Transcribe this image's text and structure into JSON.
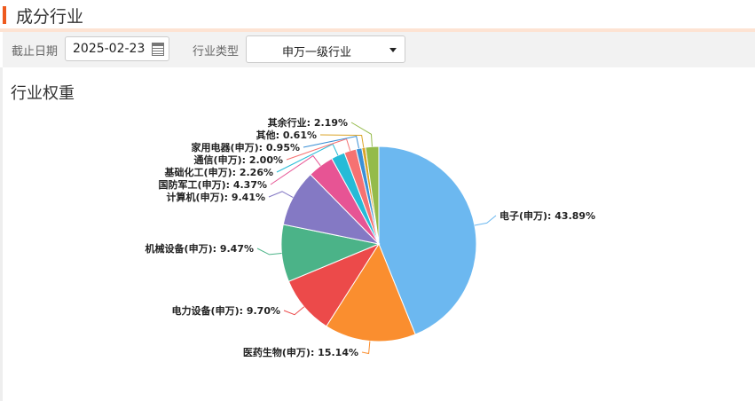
{
  "header": {
    "title": "成分行业"
  },
  "filters": {
    "date_label": "截止日期",
    "date_value": "2025-02-23",
    "industry_label": "行业类型",
    "industry_value": "申万一级行业"
  },
  "section": {
    "title": "行业权重"
  },
  "chart_data": {
    "type": "pie",
    "slices": [
      {
        "label": "电子(申万)",
        "value": 43.89,
        "color": "#6cb8f0"
      },
      {
        "label": "医药生物(申万)",
        "value": 15.14,
        "color": "#fa8e2f"
      },
      {
        "label": "电力设备(申万)",
        "value": 9.7,
        "color": "#ec4a4a"
      },
      {
        "label": "机械设备(申万)",
        "value": 9.47,
        "color": "#4bb388"
      },
      {
        "label": "计算机(申万)",
        "value": 9.41,
        "color": "#8479c4"
      },
      {
        "label": "国防军工(申万)",
        "value": 4.37,
        "color": "#e75494"
      },
      {
        "label": "基础化工(申万)",
        "value": 2.26,
        "color": "#26bbd7"
      },
      {
        "label": "通信(申万)",
        "value": 2.0,
        "color": "#f67272"
      },
      {
        "label": "家用电器(申万)",
        "value": 0.95,
        "color": "#3b90d6"
      },
      {
        "label": "其他",
        "value": 0.61,
        "color": "#dba428"
      },
      {
        "label": "其余行业",
        "value": 2.19,
        "color": "#94bb4a"
      }
    ]
  }
}
